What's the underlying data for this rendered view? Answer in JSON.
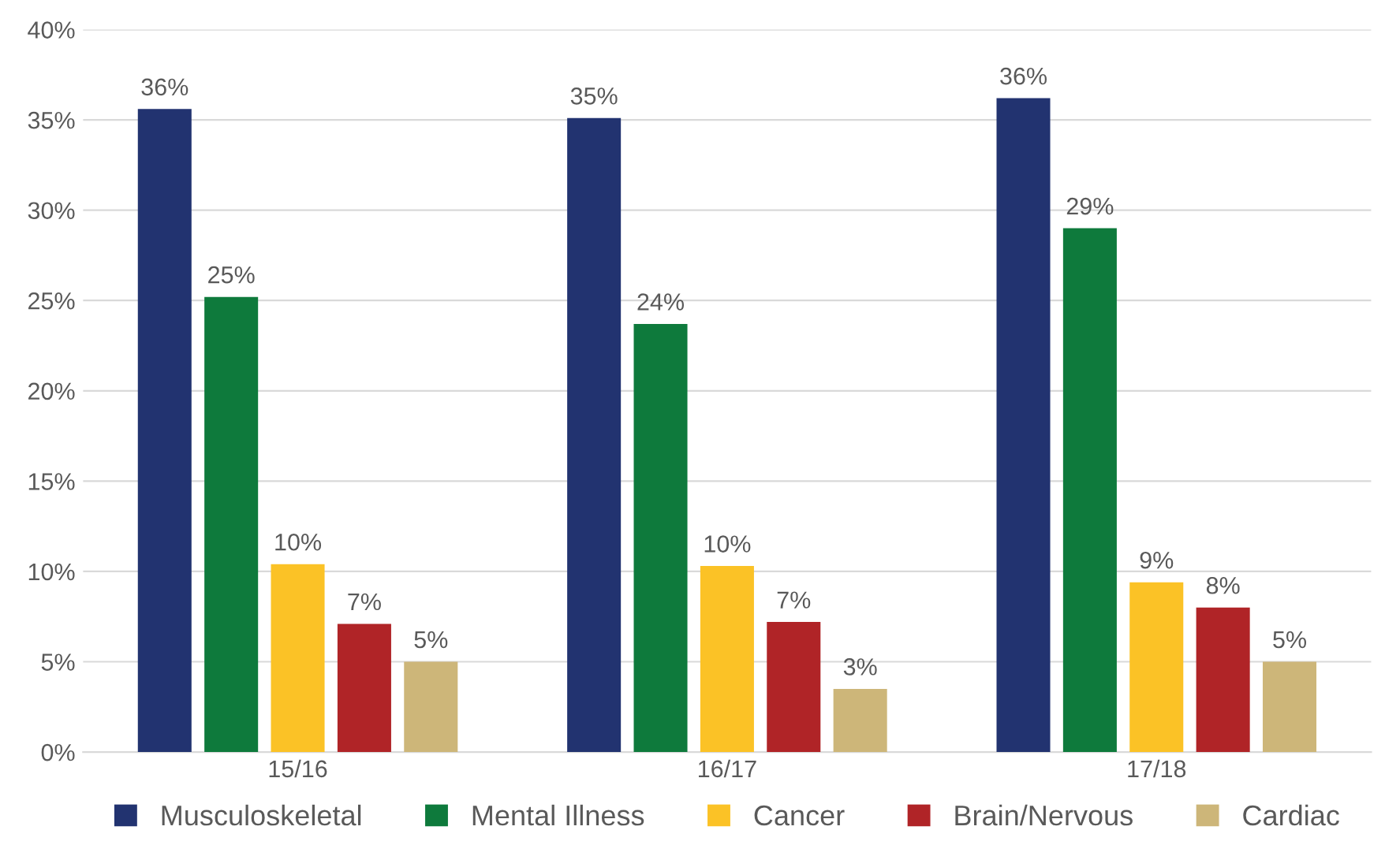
{
  "chart_data": {
    "type": "bar",
    "categories": [
      "15/16",
      "16/17",
      "17/18"
    ],
    "series": [
      {
        "name": "Musculoskeletal",
        "color": "#223370",
        "values": [
          35.6,
          35.1,
          36.2
        ],
        "value_labels": [
          "36%",
          "35%",
          "36%"
        ]
      },
      {
        "name": "Mental Illness",
        "color": "#0e7a3c",
        "values": [
          25.2,
          23.7,
          29.0
        ],
        "value_labels": [
          "25%",
          "24%",
          "29%"
        ]
      },
      {
        "name": "Cancer",
        "color": "#fbc226",
        "values": [
          10.4,
          10.3,
          9.4
        ],
        "value_labels": [
          "10%",
          "10%",
          "9%"
        ]
      },
      {
        "name": "Brain/Nervous",
        "color": "#b02427",
        "values": [
          7.1,
          7.2,
          8.0
        ],
        "value_labels": [
          "7%",
          "7%",
          "8%"
        ]
      },
      {
        "name": "Cardiac",
        "color": "#cdb679",
        "values": [
          5.0,
          3.5,
          5.0
        ],
        "value_labels": [
          "5%",
          "3%",
          "5%"
        ]
      }
    ],
    "ylim": [
      0,
      40
    ],
    "yticks": [
      {
        "value": 0,
        "label": "0%"
      },
      {
        "value": 5,
        "label": "5%"
      },
      {
        "value": 10,
        "label": "10%"
      },
      {
        "value": 15,
        "label": "15%"
      },
      {
        "value": 20,
        "label": "20%"
      },
      {
        "value": 25,
        "label": "25%"
      },
      {
        "value": 30,
        "label": "30%"
      },
      {
        "value": 35,
        "label": "35%"
      },
      {
        "value": 40,
        "label": "40%"
      }
    ],
    "grid": "y",
    "legend": "bottom"
  }
}
